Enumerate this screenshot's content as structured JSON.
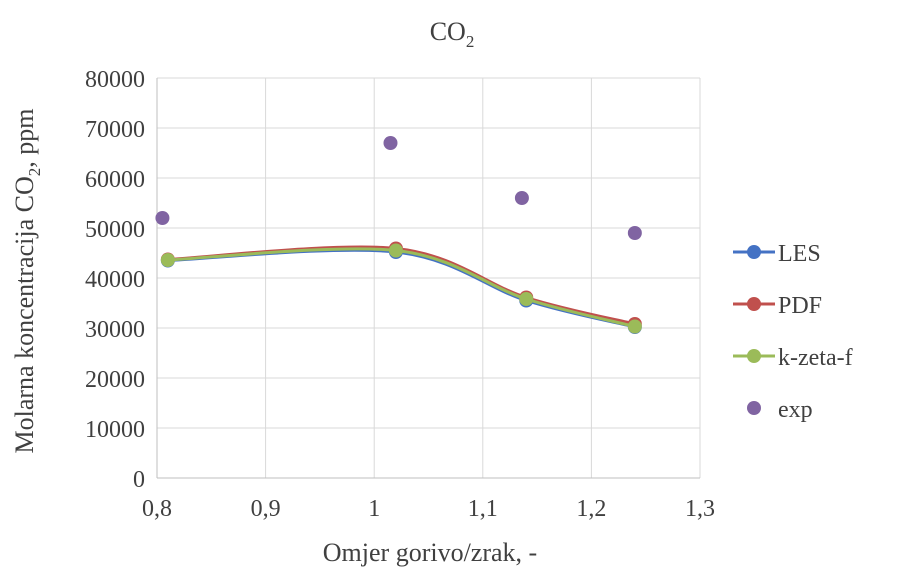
{
  "chart_data": {
    "type": "line",
    "title": "CO",
    "title_subscript": "2",
    "xlabel": "Omjer gorivo/zrak, -",
    "ylabel_parts": [
      "Molarna koncentracija CO",
      "2",
      ", ppm"
    ],
    "xlim": [
      0.8,
      1.3
    ],
    "ylim": [
      0,
      80000
    ],
    "x_ticks": [
      0.8,
      0.9,
      1.0,
      1.1,
      1.2,
      1.3
    ],
    "x_tick_labels": [
      "0,8",
      "0,9",
      "1",
      "1,1",
      "1,2",
      "1,3"
    ],
    "y_ticks": [
      0,
      10000,
      20000,
      30000,
      40000,
      50000,
      60000,
      70000,
      80000
    ],
    "y_tick_labels": [
      "0",
      "10000",
      "20000",
      "30000",
      "40000",
      "50000",
      "60000",
      "70000",
      "80000"
    ],
    "grid": true,
    "legend_position": "right",
    "series": [
      {
        "name": "LES",
        "style": "smooth-line-markers",
        "color": "#4472c4",
        "x": [
          0.81,
          1.02,
          1.14,
          1.24
        ],
        "y": [
          43500,
          45200,
          35500,
          30200
        ]
      },
      {
        "name": "PDF",
        "style": "smooth-line-markers",
        "color": "#c0504d",
        "x": [
          0.81,
          1.02,
          1.14,
          1.24
        ],
        "y": [
          43700,
          45900,
          36100,
          30800
        ]
      },
      {
        "name": "k-zeta-f",
        "style": "smooth-line-markers",
        "color": "#9bbb59",
        "x": [
          0.81,
          1.02,
          1.14,
          1.24
        ],
        "y": [
          43600,
          45500,
          35800,
          30300
        ]
      },
      {
        "name": "exp",
        "style": "markers",
        "color": "#8064a2",
        "x": [
          0.805,
          1.015,
          1.136,
          1.24
        ],
        "y": [
          52000,
          67000,
          56000,
          49000
        ]
      }
    ]
  }
}
